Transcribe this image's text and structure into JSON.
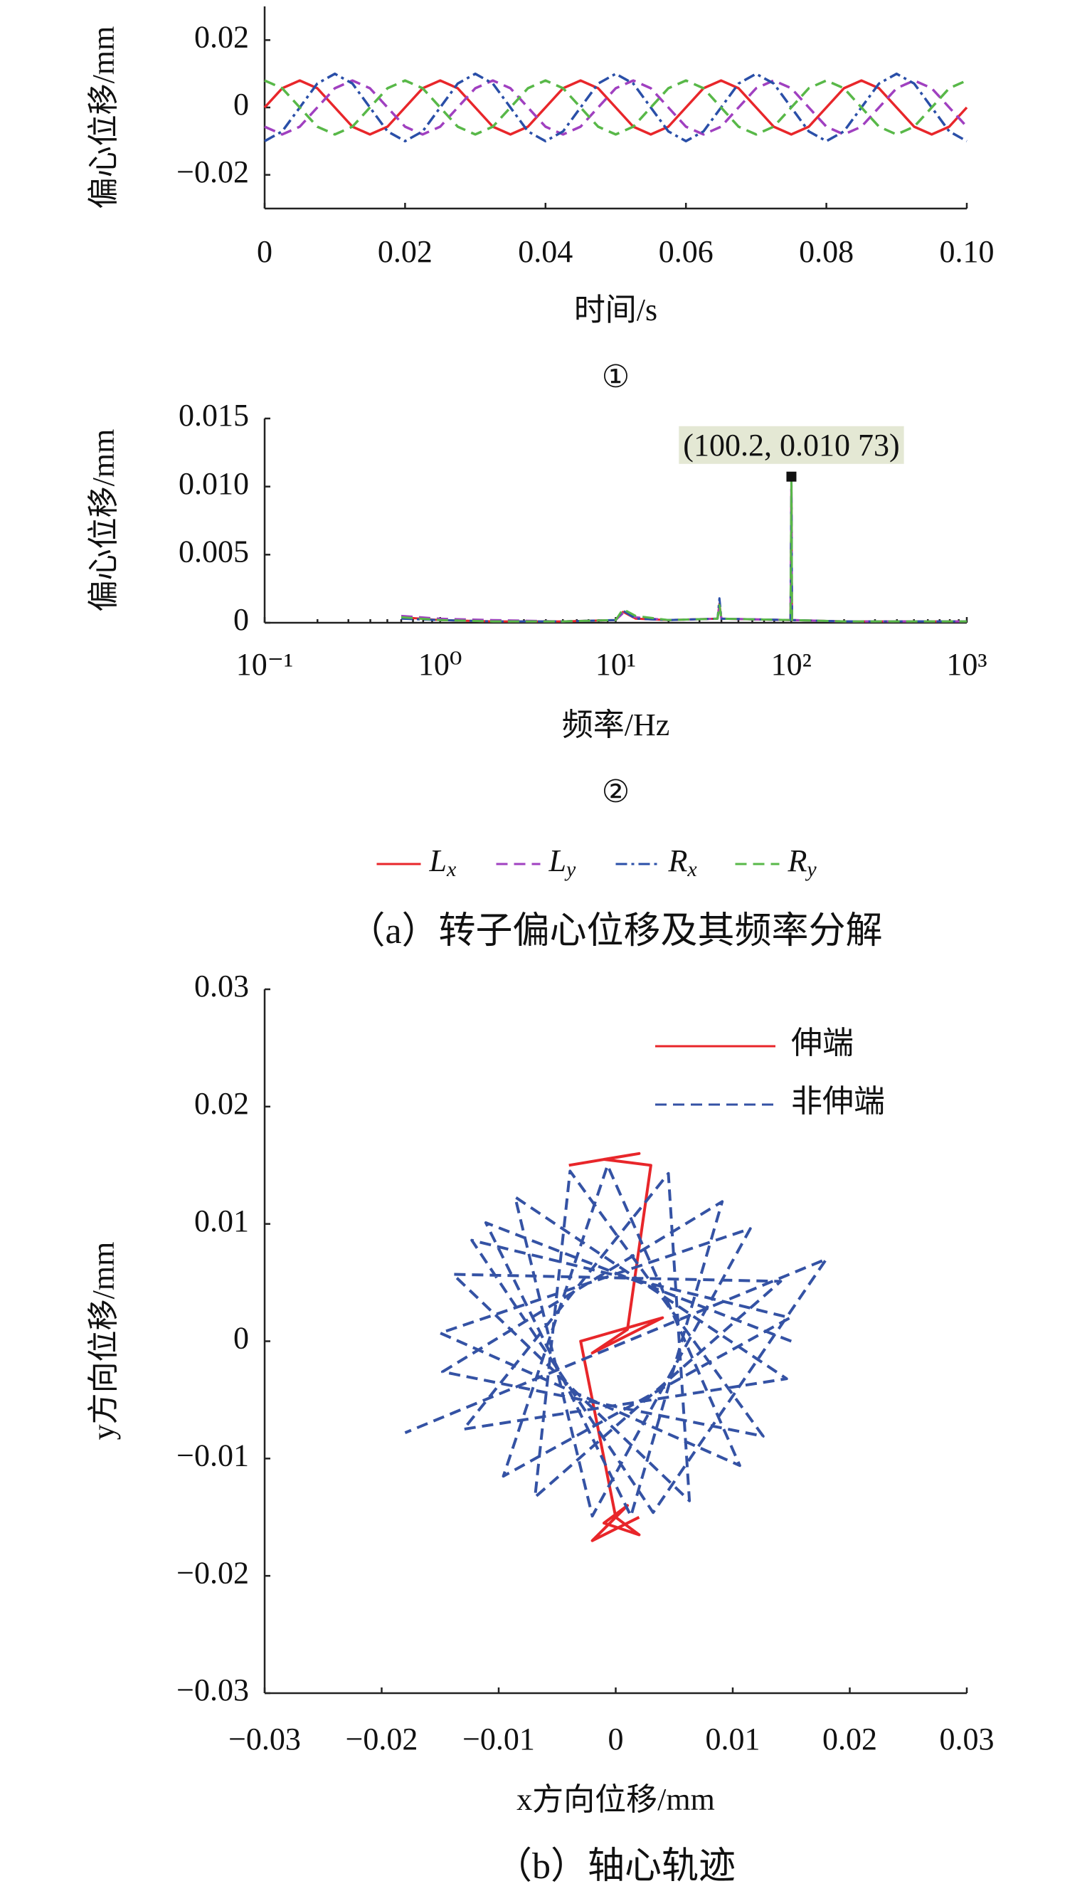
{
  "chart_data": [
    {
      "type": "line",
      "xlabel": "时间/s",
      "ylabel": "偏心位移/mm",
      "caption": "①",
      "xlim": [
        0,
        0.1
      ],
      "ylim": [
        -0.03,
        0.03
      ],
      "xticks": [
        0,
        0.02,
        0.04,
        0.06,
        0.08,
        {
          "value": 0.1,
          "label": "0.10"
        }
      ],
      "yticks": [
        {
          "value": -0.02,
          "label": "−0.02"
        },
        0,
        0.02
      ],
      "grid": false,
      "x": [
        0,
        0.0025,
        0.005,
        0.0075,
        0.01,
        0.0125,
        0.015,
        0.0175,
        0.02,
        0.0225,
        0.025,
        0.0275,
        0.03,
        0.0325,
        0.035,
        0.0375,
        0.04,
        0.0425,
        0.045,
        0.0475,
        0.05,
        0.0525,
        0.055,
        0.0575,
        0.06,
        0.0625,
        0.065,
        0.0675,
        0.07,
        0.0725,
        0.075,
        0.0775,
        0.08,
        0.0825,
        0.085,
        0.0875,
        0.09,
        0.0925,
        0.095,
        0.0975,
        0.1
      ],
      "series": [
        {
          "color": "#e8262a",
          "dash": "solid",
          "values": [
            0,
            0.0057,
            0.008,
            0.0057,
            0,
            -0.0057,
            -0.008,
            -0.0057,
            0,
            0.0057,
            0.008,
            0.0057,
            0,
            -0.0057,
            -0.008,
            -0.0057,
            0,
            0.0057,
            0.008,
            0.0057,
            0,
            -0.0057,
            -0.008,
            -0.0057,
            0,
            0.0057,
            0.008,
            0.0057,
            0,
            -0.0057,
            -0.008,
            -0.0057,
            0,
            0.0057,
            0.008,
            0.0057,
            0,
            -0.0057,
            -0.008,
            -0.0057,
            0
          ]
        },
        {
          "color": "#a040c0",
          "dash": "dash",
          "values": [
            -0.0057,
            -0.008,
            -0.0057,
            0,
            0.0057,
            0.008,
            0.0057,
            0,
            -0.0057,
            -0.008,
            -0.0057,
            0,
            0.0057,
            0.008,
            0.0057,
            0,
            -0.0057,
            -0.008,
            -0.0057,
            0,
            0.0057,
            0.008,
            0.0057,
            0,
            -0.0057,
            -0.008,
            -0.0057,
            0,
            0.0057,
            0.008,
            0.0057,
            0,
            -0.0057,
            -0.008,
            -0.0057,
            0,
            0.0057,
            0.008,
            0.0057,
            0,
            -0.0057
          ]
        },
        {
          "color": "#2a4fa8",
          "dash": "dashdot",
          "values": [
            -0.01,
            -0.0071,
            0,
            0.0071,
            0.01,
            0.0071,
            0,
            -0.0071,
            -0.01,
            -0.0071,
            0,
            0.0071,
            0.01,
            0.0071,
            0,
            -0.0071,
            -0.01,
            -0.0071,
            0,
            0.0071,
            0.01,
            0.0071,
            0,
            -0.0071,
            -0.01,
            -0.0071,
            0,
            0.0071,
            0.01,
            0.0071,
            0,
            -0.0071,
            -0.01,
            -0.0071,
            0,
            0.0071,
            0.01,
            0.0071,
            0,
            -0.0071,
            -0.01
          ]
        },
        {
          "color": "#58b848",
          "dash": "dash",
          "values": [
            0.008,
            0.0057,
            0,
            -0.0057,
            -0.008,
            -0.0057,
            0,
            0.0057,
            0.008,
            0.0057,
            0,
            -0.0057,
            -0.008,
            -0.0057,
            0,
            0.0057,
            0.008,
            0.0057,
            0,
            -0.0057,
            -0.008,
            -0.0057,
            0,
            0.0057,
            0.008,
            0.0057,
            0,
            -0.0057,
            -0.008,
            -0.0057,
            0,
            0.0057,
            0.008,
            0.0057,
            0,
            -0.0057,
            -0.008,
            -0.0057,
            0,
            0.0057,
            0.008
          ]
        }
      ]
    },
    {
      "type": "line",
      "xlabel": "频率/Hz",
      "ylabel": "偏心位移/mm",
      "caption": "②",
      "xscale": "log",
      "xlim": [
        0.1,
        1000
      ],
      "ylim": [
        0,
        0.015
      ],
      "xticks": [
        {
          "value": 0.1,
          "label": "10⁻¹"
        },
        {
          "value": 1,
          "label": "10⁰"
        },
        {
          "value": 10,
          "label": "10¹"
        },
        {
          "value": 100,
          "label": "10²"
        },
        {
          "value": 1000,
          "label": "10³"
        }
      ],
      "yticks": [
        0,
        0.005,
        {
          "value": 0.01,
          "label": "0.010"
        },
        0.015
      ],
      "grid": false,
      "legend": "bottom",
      "annotation": {
        "text": "(100.2, 0.010 73)",
        "x": 100.2,
        "y": 0.01073
      },
      "x": [
        0.6,
        1,
        2,
        5,
        10,
        11,
        13,
        20,
        38,
        39,
        40,
        99,
        100.2,
        101,
        200,
        500,
        1000
      ],
      "series": [
        {
          "name": "Lx",
          "color": "#e8262a",
          "dash": "solid",
          "values": [
            0.0004,
            0.0002,
            0.0001,
            0.0001,
            0.0002,
            0.0008,
            0.0003,
            0.0002,
            0.0003,
            0.0014,
            0.0003,
            0.0002,
            0.0105,
            0.0002,
            0.0001,
            0.0001,
            0.0001
          ]
        },
        {
          "name": "Ly",
          "color": "#a040c0",
          "dash": "dash",
          "values": [
            0.0005,
            0.0003,
            0.0002,
            0.0001,
            0.0002,
            0.0007,
            0.0004,
            0.0002,
            0.0003,
            0.0012,
            0.0003,
            0.0002,
            0.0104,
            0.0002,
            0.0001,
            0.0001,
            0.0001
          ]
        },
        {
          "name": "Rx",
          "color": "#2a4fa8",
          "dash": "dashdot",
          "values": [
            0.0003,
            0.0002,
            0.0001,
            0.0001,
            0.0002,
            0.0009,
            0.0003,
            0.0002,
            0.0003,
            0.0018,
            0.0003,
            0.0002,
            0.01073,
            0.0002,
            0.0001,
            0.0001,
            0.0001
          ]
        },
        {
          "name": "Ry",
          "color": "#58b848",
          "dash": "dash",
          "values": [
            0.0004,
            0.0002,
            0.0001,
            0.0001,
            0.0002,
            0.001,
            0.0005,
            0.0002,
            0.0003,
            0.0013,
            0.0003,
            0.0002,
            0.0106,
            0.0002,
            0.0001,
            0.0001,
            0.0001
          ]
        }
      ]
    },
    {
      "type": "line",
      "xlabel": "x方向位移/mm",
      "ylabel": "y方向位移/mm",
      "legend": "upper right",
      "grid": false,
      "xlim": [
        -0.03,
        0.03
      ],
      "ylim": [
        -0.03,
        0.03
      ],
      "xticks": [
        {
          "value": -0.03,
          "label": "−0.03"
        },
        {
          "value": -0.02,
          "label": "−0.02"
        },
        {
          "value": -0.01,
          "label": "−0.01"
        },
        0,
        0.01,
        0.02,
        0.03
      ],
      "yticks": [
        {
          "value": -0.03,
          "label": "−0.03"
        },
        {
          "value": -0.02,
          "label": "−0.02"
        },
        {
          "value": -0.01,
          "label": "−0.01"
        },
        0,
        0.01,
        0.02,
        0.03
      ],
      "series": [
        {
          "name": "伸端",
          "color": "#e8262a",
          "dash": "solid",
          "x": [
            -0.004,
            0.002,
            -0.001,
            0.003,
            0.001,
            -0.002,
            0.004,
            -0.003,
            0.0,
            0.002,
            -0.001,
            0.001,
            -0.002,
            0.002
          ],
          "values": [
            0.015,
            0.016,
            0.0155,
            0.015,
            0.001,
            -0.001,
            0.002,
            0,
            -0.015,
            -0.0165,
            -0.0155,
            -0.014,
            -0.017,
            -0.015
          ]
        },
        {
          "name": "非伸端",
          "color": "#3452a4",
          "dash": "dash",
          "x": [
            0.015,
            -0.0111,
            0.0013,
            0.0091,
            -0.0148,
            0.0126,
            -0.0039,
            -0.0069,
            0.0141,
            -0.0139,
            0.0063,
            0.0045,
            -0.013,
            0.0146,
            -0.0086,
            -0.002,
            0.0115,
            -0.015,
            0.0106,
            -0.0007,
            -0.0096,
            0.0149,
            -0.0123,
            0.0032,
            0.018,
            -0.018
          ],
          "values": [
            0,
            0.0101,
            -0.0149,
            0.0119,
            -0.0026,
            -0.0081,
            0.0145,
            -0.0133,
            0.0051,
            0.0057,
            -0.0136,
            0.0143,
            -0.0075,
            -0.0032,
            0.0123,
            -0.0149,
            0.0096,
            0.0007,
            -0.0106,
            0.015,
            -0.0115,
            0.002,
            0.0086,
            -0.0146,
            0.007,
            -0.0078
          ]
        }
      ]
    }
  ],
  "figure_captions": [
    "（a）转子偏心位移及其频率分解",
    "（b）轴心轨迹"
  ]
}
